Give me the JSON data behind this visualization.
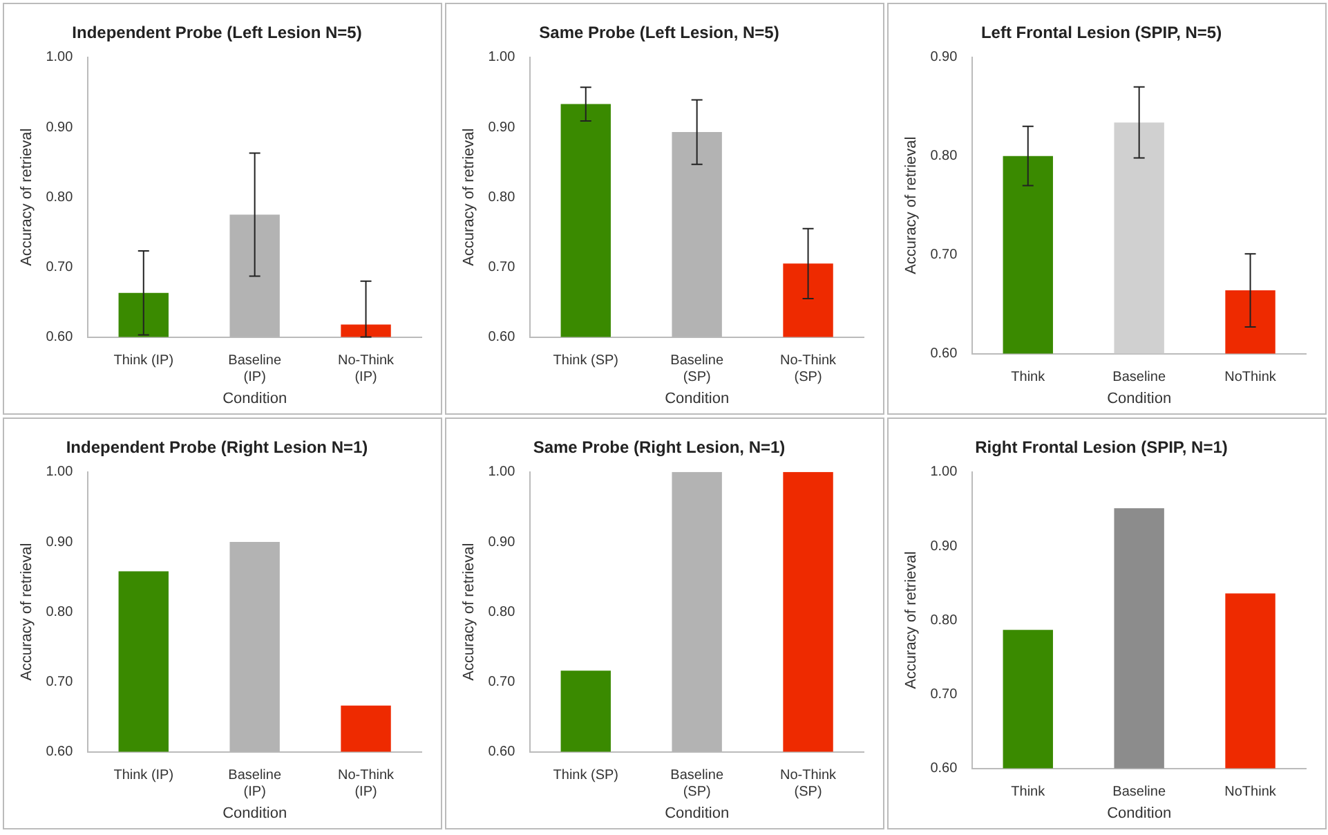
{
  "chart_data": [
    {
      "type": "bar",
      "title": "Independent Probe (Left Lesion N=5)",
      "xlabel": "Condition",
      "ylabel": "Accuracy of retrieval",
      "categories": [
        "Think (IP)",
        "Baseline (IP)",
        "No-Think (IP)"
      ],
      "values": [
        0.663,
        0.775,
        0.618
      ],
      "colors": [
        "#3a8a00",
        "#b3b3b3",
        "#ee2a00"
      ],
      "errors": [
        0.06,
        0.088,
        [
          0.6,
          0.68
        ]
      ],
      "ylim": [
        0.6,
        1.0
      ],
      "yticks": [
        {
          "value": 0.6,
          "label": "0.60"
        },
        {
          "value": 0.7,
          "label": "0.70"
        },
        {
          "value": 0.8,
          "label": "0.80"
        },
        {
          "value": 0.9,
          "label": "0.90"
        },
        {
          "value": 1.0,
          "label": "1.00"
        }
      ]
    },
    {
      "type": "bar",
      "title": "Same Probe (Left Lesion, N=5)",
      "xlabel": "Condition",
      "ylabel": "Accuracy of retrieval",
      "categories": [
        "Think (SP)",
        "Baseline (SP)",
        "No-Think (SP)"
      ],
      "values": [
        0.933,
        0.893,
        0.705
      ],
      "colors": [
        "#3a8a00",
        "#b3b3b3",
        "#ee2a00"
      ],
      "errors": [
        0.024,
        0.046,
        0.05
      ],
      "ylim": [
        0.6,
        1.0
      ],
      "yticks": [
        {
          "value": 0.6,
          "label": "0.60"
        },
        {
          "value": 0.7,
          "label": "0.70"
        },
        {
          "value": 0.8,
          "label": "0.80"
        },
        {
          "value": 0.9,
          "label": "0.90"
        },
        {
          "value": 1.0,
          "label": "1.00"
        }
      ]
    },
    {
      "type": "bar",
      "title": "Left Frontal Lesion (SPIP, N=5)",
      "xlabel": "Condition",
      "ylabel": "Accuracy of retrieval",
      "categories": [
        "Think",
        "Baseline",
        "NoThink"
      ],
      "values": [
        0.8,
        0.834,
        0.664
      ],
      "colors": [
        "#3a8a00",
        "#d0d0d0",
        "#ee2a00"
      ],
      "errors": [
        0.03,
        0.036,
        0.037
      ],
      "ylim": [
        0.6,
        0.9
      ],
      "yticks": [
        {
          "value": 0.6,
          "label": "0.60"
        },
        {
          "value": 0.7,
          "label": "0.70"
        },
        {
          "value": 0.8,
          "label": "0.80"
        },
        {
          "value": 0.9,
          "label": "0.90"
        }
      ]
    },
    {
      "type": "bar",
      "title": "Independent Probe (Right Lesion N=1)",
      "xlabel": "Condition",
      "ylabel": "Accuracy of retrieval",
      "categories": [
        "Think (IP)",
        "Baseline (IP)",
        "No-Think (IP)"
      ],
      "values": [
        0.858,
        0.9,
        0.666
      ],
      "colors": [
        "#3a8a00",
        "#b3b3b3",
        "#ee2a00"
      ],
      "ylim": [
        0.6,
        1.0
      ],
      "yticks": [
        {
          "value": 0.6,
          "label": "0.60"
        },
        {
          "value": 0.7,
          "label": "0.70"
        },
        {
          "value": 0.8,
          "label": "0.80"
        },
        {
          "value": 0.9,
          "label": "0.90"
        },
        {
          "value": 1.0,
          "label": "1.00"
        }
      ]
    },
    {
      "type": "bar",
      "title": "Same Probe (Right Lesion, N=1)",
      "xlabel": "Condition",
      "ylabel": "Accuracy of retrieval",
      "categories": [
        "Think (SP)",
        "Baseline (SP)",
        "No-Think (SP)"
      ],
      "values": [
        0.716,
        1.0,
        1.0
      ],
      "colors": [
        "#3a8a00",
        "#b3b3b3",
        "#ee2a00"
      ],
      "ylim": [
        0.6,
        1.0
      ],
      "yticks": [
        {
          "value": 0.6,
          "label": "0.60"
        },
        {
          "value": 0.7,
          "label": "0.70"
        },
        {
          "value": 0.8,
          "label": "0.80"
        },
        {
          "value": 0.9,
          "label": "0.90"
        },
        {
          "value": 1.0,
          "label": "1.00"
        }
      ]
    },
    {
      "type": "bar",
      "title": "Right Frontal Lesion (SPIP, N=1)",
      "xlabel": "Condition",
      "ylabel": "Accuracy of retrieval",
      "categories": [
        "Think",
        "Baseline",
        "NoThink"
      ],
      "values": [
        0.787,
        0.951,
        0.836
      ],
      "colors": [
        "#3a8a00",
        "#8c8c8c",
        "#ee2a00"
      ],
      "ylim": [
        0.6,
        1.0
      ],
      "yticks": [
        {
          "value": 0.6,
          "label": "0.60"
        },
        {
          "value": 0.7,
          "label": "0.70"
        },
        {
          "value": 0.8,
          "label": "0.80"
        },
        {
          "value": 0.9,
          "label": "0.90"
        },
        {
          "value": 1.0,
          "label": "1.00"
        }
      ]
    }
  ]
}
